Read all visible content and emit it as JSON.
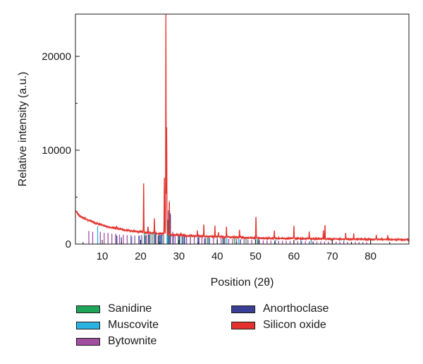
{
  "chart_data": {
    "type": "line",
    "title": "",
    "xlabel": "Position (2θ)",
    "ylabel": "Relative intensity (a.u.)",
    "xlim": [
      3,
      90
    ],
    "ylim": [
      0,
      24500
    ],
    "x_ticks": [
      10,
      20,
      30,
      40,
      50,
      60,
      70,
      80
    ],
    "y_ticks": [
      0,
      10000,
      20000
    ],
    "baseline": {
      "name": "Silicon oxide",
      "points": [
        [
          3,
          3600
        ],
        [
          4,
          3050
        ],
        [
          5,
          2800
        ],
        [
          6,
          2600
        ],
        [
          7,
          2450
        ],
        [
          8,
          2300
        ],
        [
          9,
          2150
        ],
        [
          10,
          2000
        ],
        [
          12,
          1800
        ],
        [
          14,
          1650
        ],
        [
          16,
          1500
        ],
        [
          18,
          1400
        ],
        [
          20,
          1300
        ],
        [
          22,
          1200
        ],
        [
          24,
          1150
        ],
        [
          26,
          1100
        ],
        [
          28,
          1000
        ],
        [
          30,
          950
        ],
        [
          32,
          900
        ],
        [
          35,
          850
        ],
        [
          38,
          800
        ],
        [
          40,
          780
        ],
        [
          45,
          720
        ],
        [
          50,
          650
        ],
        [
          55,
          620
        ],
        [
          60,
          600
        ],
        [
          65,
          560
        ],
        [
          70,
          540
        ],
        [
          75,
          520
        ],
        [
          80,
          500
        ],
        [
          85,
          480
        ],
        [
          90,
          460
        ]
      ]
    },
    "peaks": [
      {
        "x": 26.6,
        "y": 24500
      },
      {
        "x": 26.8,
        "y": 12500
      },
      {
        "x": 26.2,
        "y": 7000
      },
      {
        "x": 20.8,
        "y": 6400
      },
      {
        "x": 27.5,
        "y": 4800
      },
      {
        "x": 50.1,
        "y": 3100
      },
      {
        "x": 23.6,
        "y": 2700
      },
      {
        "x": 36.5,
        "y": 2100
      },
      {
        "x": 68.1,
        "y": 2100
      },
      {
        "x": 60.0,
        "y": 2000
      },
      {
        "x": 39.4,
        "y": 1900
      },
      {
        "x": 42.4,
        "y": 1800
      },
      {
        "x": 54.9,
        "y": 1500
      },
      {
        "x": 21.9,
        "y": 1900
      },
      {
        "x": 13.7,
        "y": 1900
      },
      {
        "x": 45.8,
        "y": 1500
      },
      {
        "x": 64.0,
        "y": 1300
      },
      {
        "x": 73.5,
        "y": 1200
      },
      {
        "x": 75.6,
        "y": 1100
      },
      {
        "x": 81.5,
        "y": 1000
      },
      {
        "x": 34.8,
        "y": 1400
      },
      {
        "x": 40.3,
        "y": 1300
      },
      {
        "x": 30.5,
        "y": 1200
      },
      {
        "x": 67.7,
        "y": 1500
      },
      {
        "x": 84.5,
        "y": 900
      }
    ],
    "series": [
      {
        "name": "Sanidine",
        "color": "#1fa55a",
        "sticks": [
          [
            13.5,
            1000
          ],
          [
            21.0,
            1200
          ],
          [
            22.5,
            1100
          ],
          [
            23.5,
            1500
          ],
          [
            24.8,
            1100
          ],
          [
            25.6,
            1000
          ],
          [
            27.1,
            2600
          ],
          [
            27.6,
            2000
          ],
          [
            29.8,
            1100
          ],
          [
            30.8,
            900
          ],
          [
            33.0,
            800
          ],
          [
            35.0,
            900
          ],
          [
            37.5,
            700
          ],
          [
            41.8,
            800
          ],
          [
            44.5,
            600
          ],
          [
            47.5,
            550
          ],
          [
            50.5,
            550
          ]
        ]
      },
      {
        "name": "Muscovite",
        "color": "#2ab2e0",
        "sticks": [
          [
            8.8,
            1900
          ],
          [
            17.7,
            800
          ],
          [
            19.8,
            900
          ],
          [
            25.5,
            1000
          ],
          [
            26.9,
            1100
          ],
          [
            29.9,
            900
          ],
          [
            31.3,
            1000
          ],
          [
            34.9,
            1100
          ],
          [
            37.8,
            800
          ],
          [
            40.0,
            800
          ],
          [
            42.5,
            700
          ],
          [
            45.5,
            700
          ],
          [
            50.0,
            600
          ],
          [
            55.2,
            500
          ],
          [
            61.8,
            500
          ],
          [
            64.5,
            450
          ],
          [
            73.0,
            400
          ]
        ]
      },
      {
        "name": "Bytownite",
        "color": "#a04fa0",
        "sticks": [
          [
            6.5,
            1400
          ],
          [
            7.5,
            1300
          ],
          [
            9.5,
            1300
          ],
          [
            10.5,
            1200
          ],
          [
            11.5,
            1200
          ],
          [
            12.5,
            1100
          ],
          [
            13.5,
            1100
          ],
          [
            14.5,
            1000
          ],
          [
            15.5,
            1000
          ],
          [
            16.5,
            950
          ],
          [
            17.5,
            950
          ],
          [
            18.5,
            900
          ],
          [
            19.5,
            900
          ],
          [
            20.3,
            950
          ],
          [
            21.5,
            1000
          ],
          [
            22.0,
            1800
          ],
          [
            23.0,
            1200
          ],
          [
            24.0,
            1100
          ],
          [
            25.0,
            1000
          ],
          [
            26.0,
            1000
          ],
          [
            27.8,
            3100
          ],
          [
            28.4,
            1300
          ],
          [
            29.0,
            900
          ],
          [
            30.0,
            850
          ],
          [
            31.0,
            900
          ],
          [
            32.0,
            800
          ],
          [
            33.0,
            800
          ],
          [
            34.0,
            750
          ],
          [
            35.0,
            800
          ],
          [
            36.0,
            700
          ],
          [
            37.0,
            700
          ],
          [
            38.0,
            650
          ],
          [
            39.0,
            650
          ],
          [
            40.0,
            650
          ],
          [
            41.0,
            600
          ],
          [
            42.0,
            600
          ],
          [
            43.0,
            550
          ],
          [
            44.0,
            550
          ],
          [
            45.0,
            550
          ],
          [
            46.0,
            500
          ],
          [
            47.0,
            500
          ],
          [
            48.0,
            450
          ],
          [
            49.0,
            450
          ],
          [
            50.0,
            450
          ],
          [
            51.0,
            400
          ],
          [
            52.0,
            400
          ],
          [
            53.0,
            400
          ],
          [
            54.0,
            380
          ],
          [
            55.0,
            380
          ],
          [
            56.0,
            360
          ],
          [
            57.0,
            360
          ],
          [
            58.0,
            340
          ],
          [
            59.0,
            340
          ],
          [
            60.0,
            330
          ],
          [
            61.0,
            320
          ],
          [
            62.0,
            320
          ],
          [
            63.0,
            300
          ],
          [
            64.0,
            300
          ],
          [
            65.0,
            290
          ],
          [
            66.0,
            280
          ],
          [
            67.0,
            270
          ],
          [
            68.0,
            270
          ],
          [
            69.0,
            260
          ],
          [
            70.0,
            260
          ],
          [
            71.0,
            250
          ],
          [
            72.0,
            250
          ],
          [
            73.0,
            240
          ],
          [
            74.0,
            240
          ],
          [
            75.0,
            230
          ],
          [
            76.0,
            230
          ],
          [
            77.0,
            220
          ],
          [
            78.0,
            220
          ],
          [
            79.0,
            210
          ],
          [
            80.0,
            210
          ]
        ]
      },
      {
        "name": "Anorthoclase",
        "color": "#3b3f93",
        "sticks": [
          [
            13.8,
            900
          ],
          [
            15.0,
            700
          ],
          [
            21.2,
            900
          ],
          [
            22.2,
            1000
          ],
          [
            23.8,
            1300
          ],
          [
            24.6,
            900
          ],
          [
            25.3,
            1000
          ],
          [
            27.3,
            3600
          ],
          [
            27.7,
            3300
          ],
          [
            28.5,
            1000
          ],
          [
            30.2,
            900
          ],
          [
            31.5,
            800
          ],
          [
            35.2,
            700
          ],
          [
            36.7,
            600
          ],
          [
            41.5,
            600
          ],
          [
            46.0,
            500
          ],
          [
            50.8,
            500
          ]
        ]
      },
      {
        "name": "Silicon oxide",
        "color": "#e3322d",
        "sticks": []
      }
    ]
  }
}
